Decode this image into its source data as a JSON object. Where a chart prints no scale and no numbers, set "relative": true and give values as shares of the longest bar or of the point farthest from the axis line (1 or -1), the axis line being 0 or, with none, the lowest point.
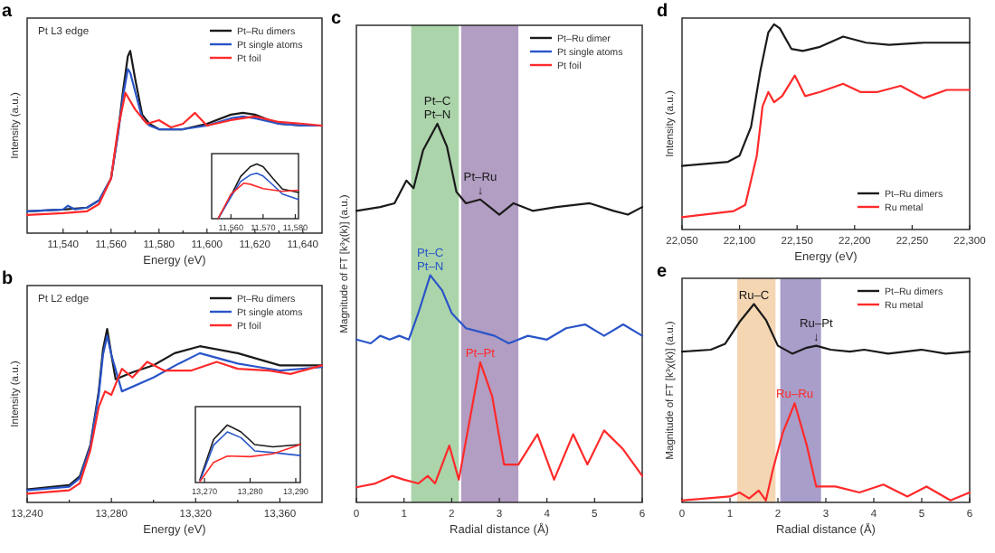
{
  "chart_data": [
    {
      "type": "line",
      "title": "a",
      "xlabel": "Energy (eV)",
      "ylabel": "Intensity (a.u.)",
      "relative": true,
      "legend": "top right",
      "annotations": [
        "Pt L3 edge"
      ],
      "xlim": [
        11525,
        11648
      ],
      "xticks": [
        {
          "value": 11540,
          "label": "11,540"
        },
        {
          "value": 11550,
          "label": null
        },
        {
          "value": 11560,
          "label": "11,560"
        },
        {
          "value": 11570,
          "label": null
        },
        {
          "value": 11580,
          "label": "11,580"
        },
        {
          "value": 11590,
          "label": null
        },
        {
          "value": 11600,
          "label": "11,600"
        },
        {
          "value": 11610,
          "label": null
        },
        {
          "value": 11620,
          "label": "11,620"
        },
        {
          "value": 11630,
          "label": null
        },
        {
          "value": 11640,
          "label": "11,640"
        }
      ],
      "series": [
        {
          "name": "Pt–Ru dimers",
          "color": "#1a1a1a",
          "x": [
            11525,
            11540,
            11550,
            11555,
            11560,
            11563,
            11565,
            11567,
            11568,
            11570,
            11573,
            11576,
            11580,
            11590,
            11600,
            11610,
            11615,
            11620,
            11630,
            11640,
            11648
          ],
          "values": [
            0.12,
            0.13,
            0.14,
            0.18,
            0.3,
            0.56,
            0.78,
            0.97,
            1,
            0.85,
            0.65,
            0.6,
            0.57,
            0.57,
            0.6,
            0.65,
            0.66,
            0.65,
            0.6,
            0.59,
            0.59
          ]
        },
        {
          "name": "Pt single atoms",
          "color": "#2a55c8",
          "x": [
            11525,
            11540,
            11542,
            11545,
            11550,
            11555,
            11560,
            11563,
            11565,
            11567,
            11568,
            11570,
            11573,
            11576,
            11580,
            11590,
            11600,
            11610,
            11615,
            11620,
            11630,
            11640,
            11648
          ],
          "values": [
            0.12,
            0.13,
            0.15,
            0.13,
            0.14,
            0.18,
            0.3,
            0.55,
            0.75,
            0.9,
            0.88,
            0.78,
            0.63,
            0.59,
            0.57,
            0.57,
            0.59,
            0.63,
            0.64,
            0.63,
            0.6,
            0.59,
            0.59
          ]
        },
        {
          "name": "Pt foil",
          "color": "#ff2a2a",
          "x": [
            11525,
            11540,
            11550,
            11555,
            11560,
            11563,
            11566,
            11570,
            11575,
            11580,
            11585,
            11590,
            11595,
            11600,
            11610,
            11620,
            11630,
            11640,
            11648
          ],
          "values": [
            0.1,
            0.11,
            0.12,
            0.16,
            0.3,
            0.58,
            0.77,
            0.68,
            0.6,
            0.62,
            0.58,
            0.6,
            0.66,
            0.59,
            0.62,
            0.64,
            0.61,
            0.6,
            0.59
          ]
        }
      ]
    },
    {
      "type": "line",
      "relative": true,
      "xlim": [
        11554,
        11581
      ],
      "xticks": [
        {
          "value": 11560,
          "label": "11,560"
        },
        {
          "value": 11570,
          "label": "11,570"
        },
        {
          "value": 11580,
          "label": "11,580"
        }
      ],
      "series": [
        {
          "color": "#1a1a1a",
          "x": [
            11556,
            11560,
            11563,
            11566,
            11568,
            11570,
            11573,
            11576,
            11581
          ],
          "values": [
            0,
            0.42,
            0.77,
            0.95,
            1,
            0.95,
            0.74,
            0.54,
            0.48
          ]
        },
        {
          "color": "#2a55c8",
          "x": [
            11556,
            11560,
            11563,
            11566,
            11568,
            11570,
            11573,
            11576,
            11581
          ],
          "values": [
            0,
            0.4,
            0.68,
            0.8,
            0.83,
            0.78,
            0.62,
            0.45,
            0.35
          ]
        },
        {
          "color": "#ff2a2a",
          "x": [
            11556,
            11560,
            11564,
            11566,
            11570,
            11576,
            11581
          ],
          "values": [
            0,
            0.45,
            0.65,
            0.63,
            0.55,
            0.5,
            0.52
          ]
        }
      ]
    },
    {
      "type": "line",
      "title": "b",
      "xlabel": "Energy (eV)",
      "ylabel": "Intensity (a.u.)",
      "relative": true,
      "legend": "top right",
      "annotations": [
        "Pt L2 edge"
      ],
      "xlim": [
        13240,
        13380
      ],
      "xticks": [
        {
          "value": 13240,
          "label": "13,240"
        },
        {
          "value": 13260,
          "label": null
        },
        {
          "value": 13280,
          "label": "13,280"
        },
        {
          "value": 13300,
          "label": null
        },
        {
          "value": 13320,
          "label": "13,320"
        },
        {
          "value": 13340,
          "label": null
        },
        {
          "value": 13360,
          "label": "13,360"
        }
      ],
      "series": [
        {
          "name": "Pt–Ru dimers",
          "color": "#1a1a1a",
          "x": [
            13240,
            13260,
            13265,
            13270,
            13274,
            13276,
            13278,
            13280,
            13282,
            13290,
            13300,
            13310,
            13322,
            13340,
            13360,
            13380
          ],
          "values": [
            0.075,
            0.1,
            0.15,
            0.33,
            0.64,
            0.88,
            1,
            0.85,
            0.71,
            0.75,
            0.79,
            0.86,
            0.9,
            0.86,
            0.79,
            0.79
          ]
        },
        {
          "name": "Pt single atoms",
          "color": "#2a55c8",
          "x": [
            13240,
            13260,
            13265,
            13270,
            13274,
            13276,
            13278,
            13280,
            13285,
            13300,
            13312,
            13322,
            13340,
            13350,
            13360,
            13380
          ],
          "values": [
            0.07,
            0.09,
            0.14,
            0.32,
            0.62,
            0.85,
            0.96,
            0.85,
            0.64,
            0.72,
            0.8,
            0.86,
            0.8,
            0.78,
            0.76,
            0.78
          ]
        },
        {
          "name": "Pt foil",
          "color": "#ff2a2a",
          "x": [
            13240,
            13260,
            13265,
            13270,
            13274,
            13277,
            13280,
            13285,
            13290,
            13297,
            13305,
            13318,
            13330,
            13340,
            13355,
            13365,
            13380
          ],
          "values": [
            0.05,
            0.07,
            0.11,
            0.3,
            0.55,
            0.64,
            0.62,
            0.77,
            0.72,
            0.81,
            0.76,
            0.76,
            0.81,
            0.77,
            0.76,
            0.74,
            0.79
          ]
        }
      ]
    },
    {
      "type": "line",
      "relative": true,
      "xlim": [
        13268,
        13291
      ],
      "xticks": [
        {
          "value": 13270,
          "label": "13,270"
        },
        {
          "value": 13280,
          "label": "13,280"
        },
        {
          "value": 13290,
          "label": "13,290"
        }
      ],
      "series": [
        {
          "color": "#1a1a1a",
          "x": [
            13269,
            13272,
            13275,
            13278,
            13281,
            13285,
            13291
          ],
          "values": [
            0.05,
            0.75,
            1,
            0.88,
            0.66,
            0.62,
            0.66
          ]
        },
        {
          "color": "#2a55c8",
          "x": [
            13269,
            13272,
            13275,
            13278,
            13281,
            13285,
            13291
          ],
          "values": [
            0.03,
            0.65,
            0.88,
            0.78,
            0.55,
            0.52,
            0.47
          ]
        },
        {
          "color": "#ff2a2a",
          "x": [
            13269,
            13272,
            13275,
            13280,
            13285,
            13291
          ],
          "values": [
            0.02,
            0.35,
            0.46,
            0.45,
            0.5,
            0.66
          ]
        }
      ]
    },
    {
      "type": "line",
      "title": "c",
      "xlabel": "Radial distance (Å)",
      "ylabel": "Magnitude of FT [k³χ(k)] (a.u.)",
      "relative": true,
      "legend": "top right",
      "xlim": [
        0,
        6
      ],
      "xticks": [
        0,
        1,
        2,
        3,
        4,
        5,
        6
      ],
      "bands": [
        {
          "axis": "x",
          "from": 1.15,
          "to": 2.15,
          "color": "#9ccc9c"
        },
        {
          "axis": "x",
          "from": 2.2,
          "to": 3.4,
          "color": "#a48cb8"
        }
      ],
      "annotations": [
        {
          "text": "Pt–C\nPt–N",
          "x": 1.7,
          "y": 1
        },
        {
          "text": "Pt–Ru\n↓",
          "x": 2.6,
          "y": 0.8
        },
        {
          "text": "Pt–C\nPt–N",
          "x": 1.55,
          "y": 0.6
        },
        {
          "text": "Pt–Pt",
          "x": 2.6,
          "y": 0.37
        }
      ],
      "series": [
        {
          "name": "Pt–Ru dimer",
          "color": "#1a1a1a",
          "x": [
            0,
            0.5,
            0.8,
            1.05,
            1.2,
            1.4,
            1.7,
            1.9,
            2.1,
            2.3,
            2.6,
            2.8,
            3.0,
            3.3,
            3.7,
            4.2,
            4.9,
            5.4,
            5.7,
            6
          ],
          "values": [
            0.77,
            0.78,
            0.79,
            0.85,
            0.83,
            0.93,
            1,
            0.94,
            0.82,
            0.79,
            0.8,
            0.78,
            0.76,
            0.79,
            0.77,
            0.78,
            0.79,
            0.77,
            0.76,
            0.78
          ]
        },
        {
          "name": "Pt single atoms",
          "color": "#2a55c8",
          "x": [
            0,
            0.3,
            0.5,
            0.7,
            0.9,
            1.1,
            1.3,
            1.55,
            1.8,
            2.0,
            2.3,
            2.6,
            2.9,
            3.2,
            3.6,
            4.0,
            4.4,
            4.8,
            5.2,
            5.6,
            6
          ],
          "values": [
            0.43,
            0.42,
            0.44,
            0.43,
            0.44,
            0.43,
            0.5,
            0.6,
            0.56,
            0.5,
            0.46,
            0.45,
            0.44,
            0.42,
            0.44,
            0.43,
            0.46,
            0.47,
            0.44,
            0.47,
            0.44
          ]
        },
        {
          "name": "Pt foil",
          "color": "#ff2a2a",
          "x": [
            0,
            0.4,
            0.75,
            1.0,
            1.3,
            1.5,
            1.65,
            1.95,
            2.15,
            2.6,
            2.85,
            3.1,
            3.4,
            3.8,
            4.15,
            4.55,
            4.85,
            5.2,
            5.6,
            6
          ],
          "values": [
            0.04,
            0.05,
            0.07,
            0.06,
            0.05,
            0.07,
            0.05,
            0.15,
            0.06,
            0.37,
            0.28,
            0.1,
            0.1,
            0.18,
            0.06,
            0.18,
            0.1,
            0.19,
            0.14,
            0.07
          ]
        }
      ]
    },
    {
      "type": "line",
      "title": "d",
      "xlabel": "Energy (eV)",
      "ylabel": "Intensity (a.u.)",
      "relative": true,
      "legend": "bottom right",
      "xlim": [
        22050,
        22300
      ],
      "xticks": [
        {
          "value": 22050,
          "label": "22,050"
        },
        {
          "value": 22100,
          "label": "22,100"
        },
        {
          "value": 22150,
          "label": "22,150"
        },
        {
          "value": 22200,
          "label": "22,200"
        },
        {
          "value": 22250,
          "label": "22,250"
        },
        {
          "value": 22300,
          "label": "22,300"
        }
      ],
      "series": [
        {
          "name": "Pt–Ru dimers",
          "color": "#1a1a1a",
          "x": [
            22050,
            22090,
            22100,
            22110,
            22118,
            22125,
            22130,
            22135,
            22145,
            22155,
            22170,
            22190,
            22210,
            22230,
            22260,
            22300
          ],
          "values": [
            0.31,
            0.33,
            0.36,
            0.5,
            0.77,
            0.96,
            1,
            0.98,
            0.88,
            0.87,
            0.89,
            0.94,
            0.91,
            0.9,
            0.91,
            0.91
          ]
        },
        {
          "name": "Ru metal",
          "color": "#ff2a2a",
          "x": [
            22050,
            22095,
            22105,
            22115,
            22120,
            22125,
            22130,
            22137,
            22148,
            22157,
            22170,
            22190,
            22205,
            22220,
            22240,
            22260,
            22280,
            22300
          ],
          "values": [
            0.06,
            0.09,
            0.12,
            0.36,
            0.6,
            0.67,
            0.62,
            0.65,
            0.75,
            0.65,
            0.67,
            0.71,
            0.67,
            0.67,
            0.7,
            0.64,
            0.68,
            0.68
          ]
        }
      ]
    },
    {
      "type": "line",
      "title": "e",
      "xlabel": "Radial distance (Å)",
      "ylabel": "Magnitude of FT [k³χ(k)] (a.u.)",
      "relative": true,
      "legend": "top right",
      "xlim": [
        0,
        6
      ],
      "xticks": [
        0,
        1,
        2,
        3,
        4,
        5,
        6
      ],
      "bands": [
        {
          "axis": "x",
          "from": 1.15,
          "to": 1.95,
          "color": "#f2cfa6"
        },
        {
          "axis": "x",
          "from": 2.05,
          "to": 2.9,
          "color": "#9a8cc0"
        }
      ],
      "annotations": [
        {
          "text": "Ru–C",
          "x": 1.5,
          "y": 1
        },
        {
          "text": "Ru–Pt\n↓",
          "x": 2.8,
          "y": 0.79
        },
        {
          "text": "Ru–Ru",
          "x": 2.35,
          "y": 0.5
        }
      ],
      "series": [
        {
          "name": "Pt–Ru dimers",
          "color": "#1a1a1a",
          "x": [
            0,
            0.6,
            0.9,
            1.2,
            1.5,
            1.75,
            2.0,
            2.3,
            2.6,
            2.8,
            3.1,
            3.5,
            3.8,
            4.3,
            5,
            5.5,
            6
          ],
          "values": [
            0.76,
            0.77,
            0.8,
            0.91,
            1,
            0.92,
            0.79,
            0.75,
            0.78,
            0.79,
            0.77,
            0.76,
            0.77,
            0.75,
            0.77,
            0.75,
            0.76
          ]
        },
        {
          "name": "Ru metal",
          "color": "#ff2a2a",
          "x": [
            0,
            0.5,
            1.0,
            1.2,
            1.4,
            1.6,
            1.75,
            1.9,
            2.1,
            2.35,
            2.6,
            2.8,
            3.2,
            3.7,
            4.2,
            4.7,
            5.1,
            5.6,
            6
          ],
          "values": [
            0.01,
            0.02,
            0.03,
            0.05,
            0.02,
            0.06,
            0.01,
            0.17,
            0.35,
            0.5,
            0.29,
            0.08,
            0.08,
            0.05,
            0.09,
            0.03,
            0.08,
            0.01,
            0.05
          ]
        }
      ]
    }
  ]
}
